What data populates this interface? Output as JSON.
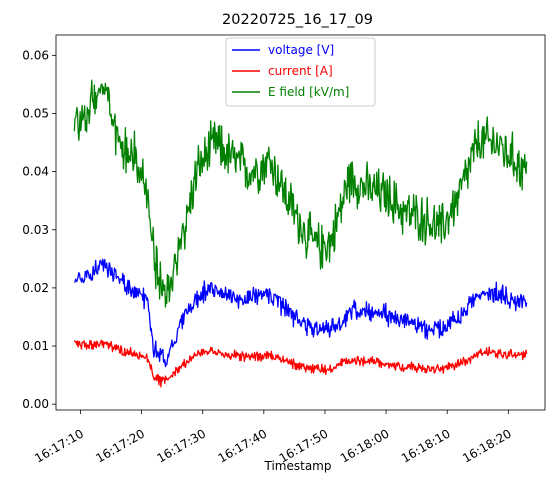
{
  "chart_data": {
    "type": "line",
    "title": "20220725_16_17_09",
    "xlabel": "Timestamp",
    "ylabel": "",
    "x_range": [
      "16:17:09",
      "16:18:23"
    ],
    "x_limits": [
      "16:17:06",
      "16:18:26"
    ],
    "ylim": [
      -0.001,
      0.0635
    ],
    "x_ticks": [
      "16:17:10",
      "16:17:20",
      "16:17:30",
      "16:17:40",
      "16:17:50",
      "16:18:00",
      "16:18:10",
      "16:18:20"
    ],
    "y_ticks": [
      "0.00",
      "0.01",
      "0.02",
      "0.03",
      "0.04",
      "0.05",
      "0.06"
    ],
    "legend_position": "upper center",
    "series": [
      {
        "name": "voltage [V]",
        "color": "#0000ff",
        "points": [
          [
            "16:17:09",
            0.0215
          ],
          [
            "16:17:12",
            0.0225
          ],
          [
            "16:17:14",
            0.0242
          ],
          [
            "16:17:16",
            0.0215
          ],
          [
            "16:17:18",
            0.02
          ],
          [
            "16:17:20",
            0.019
          ],
          [
            "16:17:21",
            0.0175
          ],
          [
            "16:17:22",
            0.0095
          ],
          [
            "16:17:23",
            0.0085
          ],
          [
            "16:17:24",
            0.0075
          ],
          [
            "16:17:25",
            0.01
          ],
          [
            "16:17:27",
            0.015
          ],
          [
            "16:17:30",
            0.0195
          ],
          [
            "16:17:33",
            0.0195
          ],
          [
            "16:17:36",
            0.018
          ],
          [
            "16:17:40",
            0.019
          ],
          [
            "16:17:43",
            0.017
          ],
          [
            "16:17:45",
            0.015
          ],
          [
            "16:17:47",
            0.0135
          ],
          [
            "16:17:50",
            0.013
          ],
          [
            "16:17:52",
            0.0135
          ],
          [
            "16:17:55",
            0.0165
          ],
          [
            "16:17:58",
            0.016
          ],
          [
            "16:18:01",
            0.015
          ],
          [
            "16:18:04",
            0.014
          ],
          [
            "16:18:06",
            0.013
          ],
          [
            "16:18:09",
            0.013
          ],
          [
            "16:18:12",
            0.015
          ],
          [
            "16:18:15",
            0.019
          ],
          [
            "16:18:18",
            0.019
          ],
          [
            "16:18:21",
            0.018
          ],
          [
            "16:18:23",
            0.0175
          ]
        ]
      },
      {
        "name": "current [A]",
        "color": "#ff0000",
        "points": [
          [
            "16:17:09",
            0.0105
          ],
          [
            "16:17:12",
            0.01
          ],
          [
            "16:17:14",
            0.0105
          ],
          [
            "16:17:17",
            0.009
          ],
          [
            "16:17:20",
            0.0085
          ],
          [
            "16:17:21",
            0.008
          ],
          [
            "16:17:22",
            0.005
          ],
          [
            "16:17:23",
            0.004
          ],
          [
            "16:17:24",
            0.004
          ],
          [
            "16:17:26",
            0.006
          ],
          [
            "16:17:28",
            0.008
          ],
          [
            "16:17:30",
            0.009
          ],
          [
            "16:17:34",
            0.0085
          ],
          [
            "16:17:38",
            0.008
          ],
          [
            "16:17:41",
            0.0085
          ],
          [
            "16:17:45",
            0.007
          ],
          [
            "16:17:48",
            0.006
          ],
          [
            "16:17:51",
            0.006
          ],
          [
            "16:17:54",
            0.0075
          ],
          [
            "16:17:58",
            0.0075
          ],
          [
            "16:18:02",
            0.0065
          ],
          [
            "16:18:06",
            0.006
          ],
          [
            "16:18:09",
            0.006
          ],
          [
            "16:18:12",
            0.007
          ],
          [
            "16:18:16",
            0.009
          ],
          [
            "16:18:20",
            0.0085
          ],
          [
            "16:18:23",
            0.0085
          ]
        ]
      },
      {
        "name": "E field [kV/m]",
        "color": "#008000",
        "points": [
          [
            "16:17:09",
            0.05
          ],
          [
            "16:17:10",
            0.048
          ],
          [
            "16:17:12",
            0.052
          ],
          [
            "16:17:13",
            0.0535
          ],
          [
            "16:17:14",
            0.054
          ],
          [
            "16:17:15",
            0.051
          ],
          [
            "16:17:16",
            0.046
          ],
          [
            "16:17:18",
            0.044
          ],
          [
            "16:17:20",
            0.04
          ],
          [
            "16:17:21",
            0.035
          ],
          [
            "16:17:22",
            0.026
          ],
          [
            "16:17:23",
            0.02
          ],
          [
            "16:17:24",
            0.018
          ],
          [
            "16:17:25",
            0.022
          ],
          [
            "16:17:27",
            0.03
          ],
          [
            "16:17:29",
            0.04
          ],
          [
            "16:17:32",
            0.045
          ],
          [
            "16:17:35",
            0.042
          ],
          [
            "16:17:38",
            0.04
          ],
          [
            "16:17:41",
            0.042
          ],
          [
            "16:17:44",
            0.035
          ],
          [
            "16:17:47",
            0.029
          ],
          [
            "16:17:49",
            0.027
          ],
          [
            "16:17:51",
            0.028
          ],
          [
            "16:17:54",
            0.039
          ],
          [
            "16:17:57",
            0.037
          ],
          [
            "16:18:00",
            0.036
          ],
          [
            "16:18:03",
            0.033
          ],
          [
            "16:18:06",
            0.032
          ],
          [
            "16:18:09",
            0.03
          ],
          [
            "16:18:12",
            0.036
          ],
          [
            "16:18:15",
            0.045
          ],
          [
            "16:18:18",
            0.045
          ],
          [
            "16:18:21",
            0.042
          ],
          [
            "16:18:23",
            0.04
          ]
        ]
      }
    ]
  }
}
